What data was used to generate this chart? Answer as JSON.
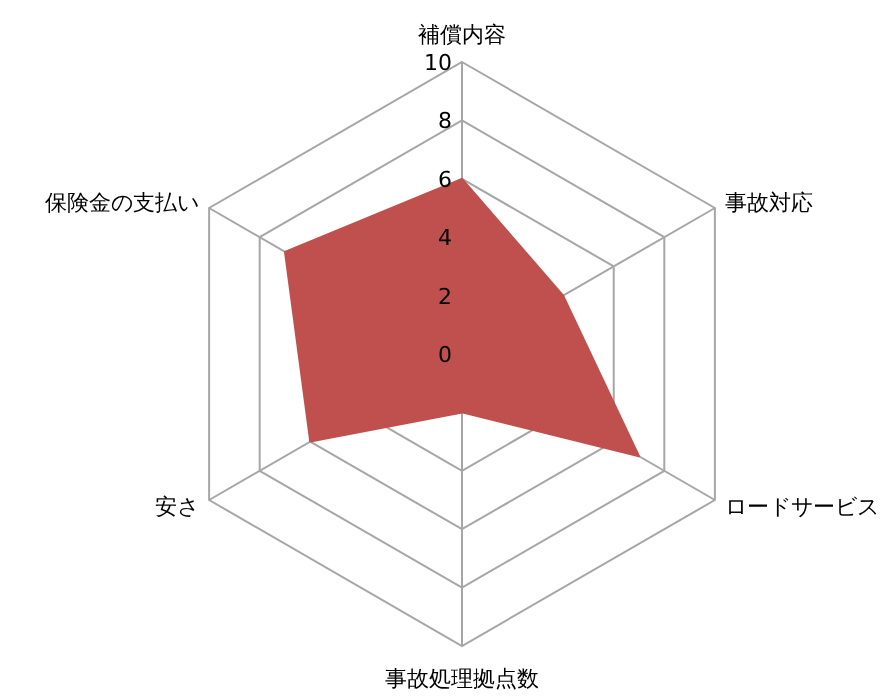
{
  "chart_data": {
    "type": "radar",
    "categories": [
      "補償内容",
      "事故対応",
      "ロードサービス",
      "事故処理拠点数",
      "安さ",
      "保険金の支払い"
    ],
    "series": [
      {
        "color": "#c0504d",
        "values": [
          6,
          4,
          7,
          2,
          6,
          7
        ]
      }
    ],
    "ylim": [
      0,
      10
    ],
    "yticks": [
      0,
      2,
      4,
      6,
      8,
      10
    ],
    "grid": true
  }
}
